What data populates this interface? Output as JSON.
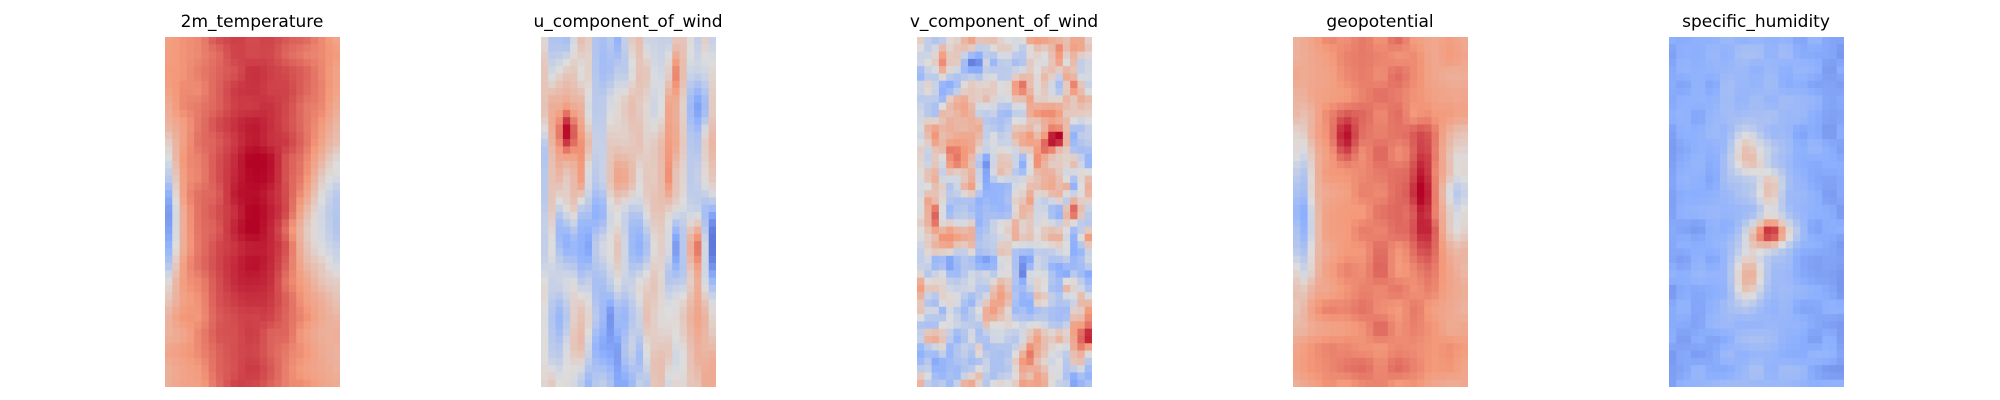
{
  "chart_data": [
    {
      "type": "heatmap",
      "title": "2m_temperature",
      "colormap": "coolwarm",
      "grid": false,
      "axes_visible": false,
      "pattern": "temperature"
    },
    {
      "type": "heatmap",
      "title": "u_component_of_wind",
      "colormap": "coolwarm",
      "grid": false,
      "axes_visible": false,
      "pattern": "u_wind"
    },
    {
      "type": "heatmap",
      "title": "v_component_of_wind",
      "colormap": "coolwarm",
      "grid": false,
      "axes_visible": false,
      "pattern": "v_wind"
    },
    {
      "type": "heatmap",
      "title": "geopotential",
      "colormap": "coolwarm",
      "grid": false,
      "axes_visible": false,
      "pattern": "geopotential"
    },
    {
      "type": "heatmap",
      "title": "specific_humidity",
      "colormap": "coolwarm",
      "grid": false,
      "axes_visible": false,
      "pattern": "humidity"
    }
  ],
  "colors": {
    "cold": "#3b4cc0",
    "neutral": "#dddddd",
    "warm": "#b40426"
  }
}
